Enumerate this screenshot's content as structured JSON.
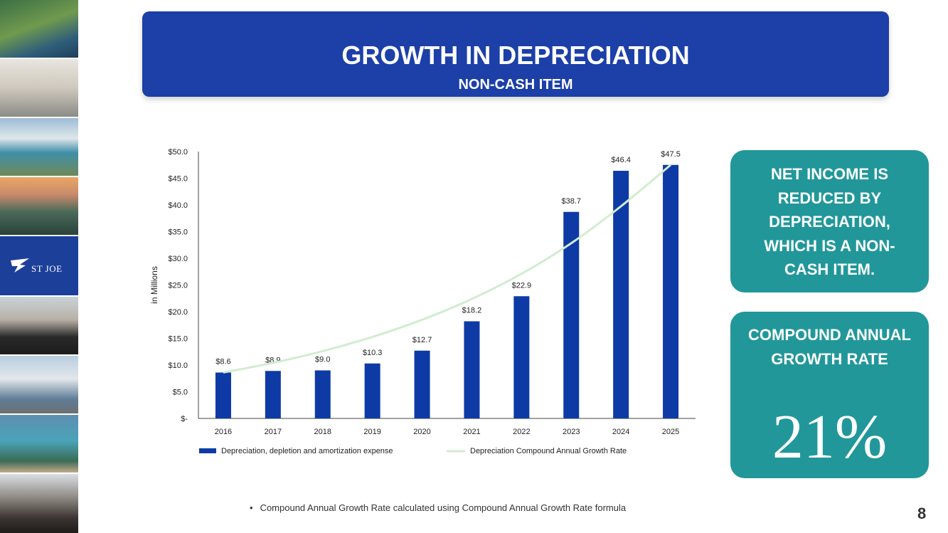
{
  "header": {
    "title": "GROWTH IN DEPRECIATION",
    "subtitle": "NON-CASH ITEM"
  },
  "logo": {
    "text": "ST JOE"
  },
  "callouts": {
    "net_income": "NET INCOME IS REDUCED BY DEPRECIATION, WHICH IS A NON-CASH ITEM.",
    "cagr_label": "COMPOUND ANNUAL GROWTH RATE",
    "cagr_value": "21%"
  },
  "footnote": "Compound Annual Growth Rate calculated using Compound Annual Growth Rate formula",
  "page_number": "8",
  "colors": {
    "brand_blue": "#1c3fa8",
    "bar_blue": "#0e3aa6",
    "cagr_line": "#d2ecd0",
    "teal": "#21979a"
  },
  "chart_data": {
    "type": "bar",
    "categories": [
      "2016",
      "2017",
      "2018",
      "2019",
      "2020",
      "2021",
      "2022",
      "2023",
      "2024",
      "2025"
    ],
    "series": [
      {
        "name": "Depreciation, depletion and amortization expense",
        "type": "bar",
        "values": [
          8.6,
          8.9,
          9.0,
          10.3,
          12.7,
          18.2,
          22.9,
          38.7,
          46.4,
          47.5
        ],
        "labels": [
          "$8.6",
          "$8.9",
          "$9.0",
          "$10.3",
          "$12.7",
          "$18.2",
          "$22.9",
          "$38.7",
          "$46.4",
          "$47.5"
        ]
      },
      {
        "name": "Depreciation Compound Annual Growth Rate",
        "type": "line",
        "values": [
          8.6,
          10.42,
          12.61,
          15.27,
          18.49,
          22.39,
          27.11,
          32.83,
          39.75,
          47.5
        ]
      }
    ],
    "ylabel": "in Millions",
    "ylim": [
      0,
      50
    ],
    "yticks": [
      0,
      5,
      10,
      15,
      20,
      25,
      30,
      35,
      40,
      45,
      50
    ],
    "ytick_labels": [
      "$-",
      "$5.0",
      "$10.0",
      "$15.0",
      "$20.0",
      "$25.0",
      "$30.0",
      "$35.0",
      "$40.0",
      "$45.0",
      "$50.0"
    ],
    "grid": false,
    "legend": "bottom"
  }
}
